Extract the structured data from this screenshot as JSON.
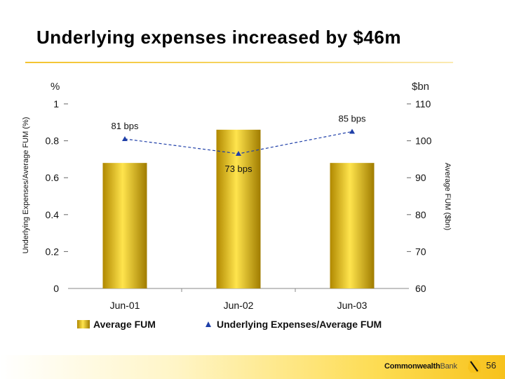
{
  "slide": {
    "title": "Underlying expenses increased by $46m",
    "page_number": "56"
  },
  "brand": {
    "name_bold": "Commonwealth",
    "name_light": "Bank"
  },
  "colors": {
    "bar_gold": "#e6c200",
    "line_blue": "#1f3fa8",
    "accent_yellow": "#f7c21c"
  },
  "chart_data": {
    "type": "bar",
    "title": "",
    "categories": [
      "Jun-01",
      "Jun-02",
      "Jun-03"
    ],
    "left_axis": {
      "label": "Underlying Expenses/Average FUM (%)",
      "unit": "%",
      "range": [
        0,
        1
      ],
      "ticks": [
        "0",
        "0.2",
        "0.4",
        "0.6",
        "0.8",
        "1"
      ],
      "tick_values": [
        0,
        0.2,
        0.4,
        0.6,
        0.8,
        1
      ]
    },
    "right_axis": {
      "label": "Average FUM ($bn)",
      "unit": "$bn",
      "range": [
        60,
        110
      ],
      "ticks": [
        "60",
        "70",
        "80",
        "90",
        "100",
        "110"
      ],
      "tick_values": [
        60,
        70,
        80,
        90,
        100,
        110
      ]
    },
    "series": [
      {
        "name": "Average FUM",
        "type": "bar",
        "axis": "right",
        "values": [
          94,
          103,
          94
        ]
      },
      {
        "name": "Underlying Expenses/Average FUM",
        "type": "line",
        "axis": "left",
        "values": [
          0.81,
          0.73,
          0.85
        ],
        "labels": [
          "81 bps",
          "73 bps",
          "85 bps"
        ]
      }
    ],
    "legend_position": "bottom"
  }
}
